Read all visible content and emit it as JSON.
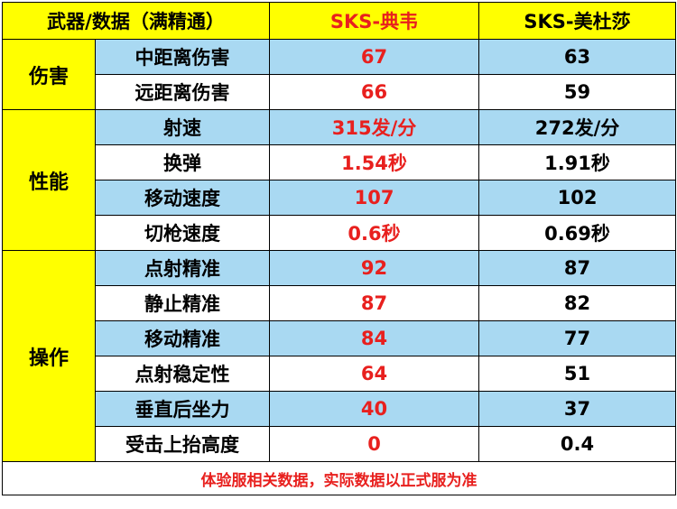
{
  "header": [
    "武器/数据（满精通）",
    "SKS-典韦",
    "SKS-美杜莎"
  ],
  "groups": [
    {
      "name": "伤害",
      "rows": [
        [
          "中距离伤害",
          "67",
          "63"
        ],
        [
          "远距离伤害",
          "66",
          "59"
        ]
      ]
    },
    {
      "name": "性能",
      "rows": [
        [
          "射速",
          "315发/分",
          "272发/分"
        ],
        [
          "换弹",
          "1.54秒",
          "1.91秒"
        ],
        [
          "移动速度",
          "107",
          "102"
        ],
        [
          "切枪速度",
          "0.6秒",
          "0.69秒"
        ]
      ]
    },
    {
      "name": "操作",
      "rows": [
        [
          "点射精准",
          "92",
          "87"
        ],
        [
          "静止精准",
          "87",
          "82"
        ],
        [
          "移动精准",
          "84",
          "77"
        ],
        [
          "点射稳定性",
          "64",
          "51"
        ],
        [
          "垂直后坐力",
          "40",
          "37"
        ],
        [
          "受击上抬高度",
          "0",
          "0.4"
        ]
      ]
    }
  ],
  "footer": "体验服相关数据，实际数据以正式服为准"
}
